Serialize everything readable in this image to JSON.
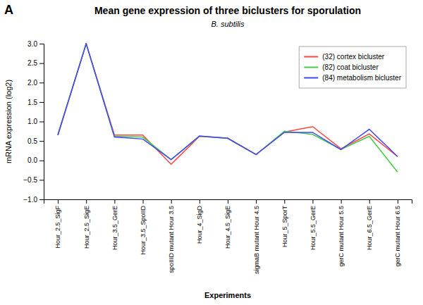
{
  "chart_data": {
    "type": "line",
    "title": "Mean gene expression of three biclusters for sporulation",
    "subtitle": "B. subtilis",
    "panel_label": "A",
    "x_label": "Experiments",
    "y_label": "mRNA expression (log2)",
    "categories": [
      "Hour_2.5_SigF",
      "Hour_2.5_SigE",
      "Hour_3.5_GerE",
      "Hour_3.5_SpoIID",
      "spoIIID mutant Hour 3.5",
      "Hour_4_SigD",
      "Hour_4.5_SigE",
      "sigmaB mutant Hour 4.5",
      "Hour_5_SporT",
      "Hour_5.5_GerE",
      "gerC mutant Hour 5.5",
      "Hour_6.5_GerE",
      "gerC mutant Hour 6.5"
    ],
    "series": [
      {
        "name": "(32) cortex bicluster",
        "color": "#ff4444",
        "values": [
          0.65,
          3.0,
          0.65,
          0.65,
          -0.1,
          0.62,
          0.57,
          0.15,
          0.73,
          0.87,
          0.3,
          0.68,
          0.1
        ]
      },
      {
        "name": "(82) coat bicluster",
        "color": "#44cc44",
        "values": [
          0.67,
          3.0,
          0.62,
          0.6,
          0.02,
          0.62,
          0.57,
          0.15,
          0.75,
          0.67,
          0.28,
          0.62,
          -0.3
        ]
      },
      {
        "name": "(84) metabolism bicluster",
        "color": "#4444ff",
        "values": [
          0.65,
          3.0,
          0.6,
          0.55,
          0.02,
          0.63,
          0.57,
          0.15,
          0.72,
          0.72,
          0.28,
          0.8,
          0.1
        ]
      }
    ],
    "ylim": [
      -1,
      3
    ],
    "yticks": [
      {
        "value": -1,
        "label": "−1.0"
      },
      {
        "value": -0.5,
        "label": "−0.5"
      },
      {
        "value": 0,
        "label": "0.0"
      },
      0.5,
      {
        "value": 1,
        "label": "1.0"
      },
      1.5,
      {
        "value": 2,
        "label": "2.0"
      },
      2.5,
      {
        "value": 3,
        "label": "3.0"
      }
    ],
    "grid": false,
    "legend": "upper right"
  }
}
